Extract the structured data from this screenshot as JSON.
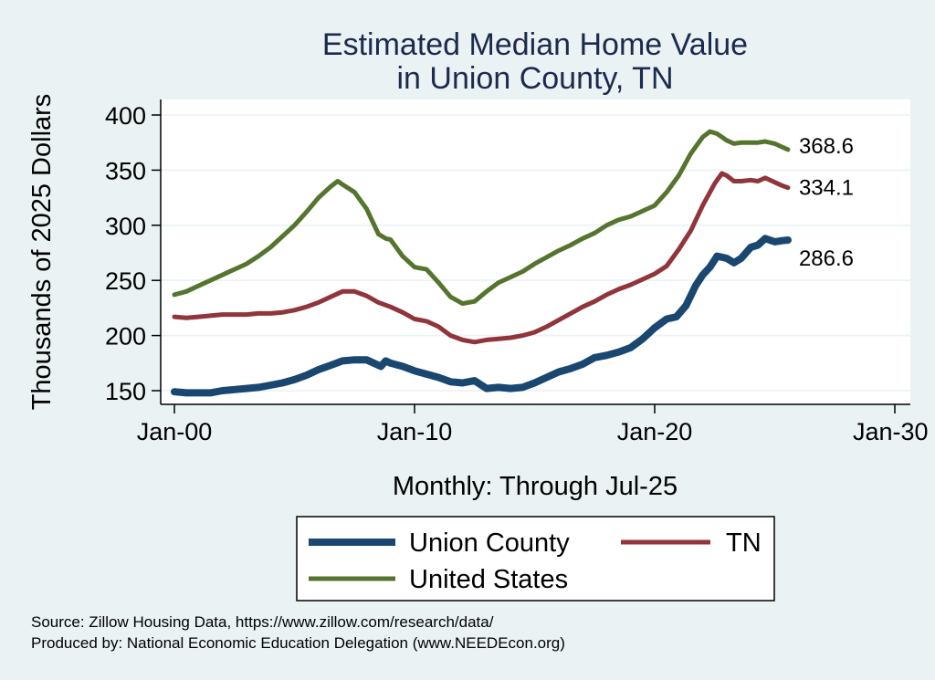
{
  "chart_data": {
    "type": "line",
    "title": [
      "Estimated Median Home Value",
      "in Union County, TN"
    ],
    "xlabel": "Monthly: Through Jul-25",
    "ylabel": "Thousands of 2025 Dollars",
    "x_ticks": [
      "Jan-00",
      "Jan-10",
      "Jan-20",
      "Jan-30"
    ],
    "x_tick_values": [
      2000,
      2010,
      2020,
      2030
    ],
    "y_ticks": [
      "150",
      "200",
      "250",
      "300",
      "350",
      "400"
    ],
    "y_tick_values": [
      150,
      200,
      250,
      300,
      350,
      400
    ],
    "xlim": [
      2000,
      2030
    ],
    "ylim": [
      150,
      400
    ],
    "grid": true,
    "legend_position": "bottom",
    "series": [
      {
        "name": "Union County",
        "color": "#1a476f",
        "end_label": "286.6",
        "points": [
          [
            2000.0,
            149
          ],
          [
            2000.5,
            148
          ],
          [
            2001.0,
            148
          ],
          [
            2001.5,
            148
          ],
          [
            2002.0,
            150
          ],
          [
            2002.5,
            151
          ],
          [
            2003.0,
            152
          ],
          [
            2003.5,
            153
          ],
          [
            2004.0,
            155
          ],
          [
            2004.5,
            157
          ],
          [
            2005.0,
            160
          ],
          [
            2005.5,
            164
          ],
          [
            2006.0,
            169
          ],
          [
            2006.5,
            173
          ],
          [
            2007.0,
            177
          ],
          [
            2007.5,
            178
          ],
          [
            2008.0,
            178
          ],
          [
            2008.3,
            175
          ],
          [
            2008.6,
            172
          ],
          [
            2008.8,
            177
          ],
          [
            2009.0,
            175
          ],
          [
            2009.5,
            172
          ],
          [
            2010.0,
            168
          ],
          [
            2010.5,
            165
          ],
          [
            2011.0,
            162
          ],
          [
            2011.5,
            158
          ],
          [
            2012.0,
            157
          ],
          [
            2012.5,
            159
          ],
          [
            2013.0,
            152
          ],
          [
            2013.5,
            153
          ],
          [
            2014.0,
            152
          ],
          [
            2014.5,
            153
          ],
          [
            2015.0,
            157
          ],
          [
            2015.5,
            162
          ],
          [
            2016.0,
            167
          ],
          [
            2016.5,
            170
          ],
          [
            2017.0,
            174
          ],
          [
            2017.5,
            180
          ],
          [
            2018.0,
            182
          ],
          [
            2018.5,
            185
          ],
          [
            2019.0,
            189
          ],
          [
            2019.5,
            197
          ],
          [
            2020.0,
            207
          ],
          [
            2020.5,
            215
          ],
          [
            2020.9,
            217
          ],
          [
            2021.3,
            227
          ],
          [
            2021.7,
            245
          ],
          [
            2022.0,
            255
          ],
          [
            2022.3,
            262
          ],
          [
            2022.6,
            272
          ],
          [
            2023.0,
            270
          ],
          [
            2023.3,
            266
          ],
          [
            2023.6,
            270
          ],
          [
            2024.0,
            280
          ],
          [
            2024.3,
            282
          ],
          [
            2024.6,
            288
          ],
          [
            2025.0,
            285
          ],
          [
            2025.3,
            286
          ],
          [
            2025.55,
            286.6
          ]
        ]
      },
      {
        "name": "TN",
        "color": "#90353b",
        "end_label": "334.1",
        "points": [
          [
            2000.0,
            217
          ],
          [
            2000.5,
            216
          ],
          [
            2001.0,
            217
          ],
          [
            2001.5,
            218
          ],
          [
            2002.0,
            219
          ],
          [
            2002.5,
            219
          ],
          [
            2003.0,
            219
          ],
          [
            2003.5,
            220
          ],
          [
            2004.0,
            220
          ],
          [
            2004.5,
            221
          ],
          [
            2005.0,
            223
          ],
          [
            2005.5,
            226
          ],
          [
            2006.0,
            230
          ],
          [
            2006.5,
            235
          ],
          [
            2007.0,
            240
          ],
          [
            2007.5,
            240
          ],
          [
            2008.0,
            236
          ],
          [
            2008.5,
            230
          ],
          [
            2009.0,
            226
          ],
          [
            2009.5,
            221
          ],
          [
            2010.0,
            215
          ],
          [
            2010.5,
            213
          ],
          [
            2011.0,
            208
          ],
          [
            2011.5,
            200
          ],
          [
            2012.0,
            196
          ],
          [
            2012.5,
            194
          ],
          [
            2013.0,
            196
          ],
          [
            2013.5,
            197
          ],
          [
            2014.0,
            198
          ],
          [
            2014.5,
            200
          ],
          [
            2015.0,
            203
          ],
          [
            2015.5,
            208
          ],
          [
            2016.0,
            214
          ],
          [
            2016.5,
            220
          ],
          [
            2017.0,
            226
          ],
          [
            2017.5,
            231
          ],
          [
            2018.0,
            237
          ],
          [
            2018.5,
            242
          ],
          [
            2019.0,
            246
          ],
          [
            2019.5,
            251
          ],
          [
            2020.0,
            256
          ],
          [
            2020.5,
            263
          ],
          [
            2021.0,
            278
          ],
          [
            2021.5,
            295
          ],
          [
            2022.0,
            318
          ],
          [
            2022.5,
            338
          ],
          [
            2022.8,
            347
          ],
          [
            2023.0,
            345
          ],
          [
            2023.3,
            340
          ],
          [
            2023.6,
            340
          ],
          [
            2024.0,
            341
          ],
          [
            2024.3,
            340
          ],
          [
            2024.6,
            343
          ],
          [
            2025.0,
            339
          ],
          [
            2025.3,
            336
          ],
          [
            2025.55,
            334.1
          ]
        ]
      },
      {
        "name": "United States",
        "color": "#55752f",
        "end_label": "368.6",
        "points": [
          [
            2000.0,
            237
          ],
          [
            2000.5,
            240
          ],
          [
            2001.0,
            245
          ],
          [
            2001.5,
            250
          ],
          [
            2002.0,
            255
          ],
          [
            2002.5,
            260
          ],
          [
            2003.0,
            265
          ],
          [
            2003.5,
            272
          ],
          [
            2004.0,
            280
          ],
          [
            2004.5,
            290
          ],
          [
            2005.0,
            300
          ],
          [
            2005.5,
            312
          ],
          [
            2006.0,
            325
          ],
          [
            2006.5,
            335
          ],
          [
            2006.8,
            340
          ],
          [
            2007.0,
            337
          ],
          [
            2007.5,
            330
          ],
          [
            2008.0,
            315
          ],
          [
            2008.5,
            292
          ],
          [
            2008.8,
            288
          ],
          [
            2009.0,
            287
          ],
          [
            2009.5,
            272
          ],
          [
            2010.0,
            262
          ],
          [
            2010.5,
            260
          ],
          [
            2011.0,
            248
          ],
          [
            2011.5,
            235
          ],
          [
            2012.0,
            229
          ],
          [
            2012.5,
            231
          ],
          [
            2013.0,
            240
          ],
          [
            2013.5,
            248
          ],
          [
            2014.0,
            253
          ],
          [
            2014.5,
            258
          ],
          [
            2015.0,
            265
          ],
          [
            2015.5,
            271
          ],
          [
            2016.0,
            277
          ],
          [
            2016.5,
            282
          ],
          [
            2017.0,
            288
          ],
          [
            2017.5,
            293
          ],
          [
            2018.0,
            300
          ],
          [
            2018.5,
            305
          ],
          [
            2019.0,
            308
          ],
          [
            2019.5,
            313
          ],
          [
            2020.0,
            318
          ],
          [
            2020.5,
            330
          ],
          [
            2021.0,
            345
          ],
          [
            2021.5,
            365
          ],
          [
            2022.0,
            380
          ],
          [
            2022.3,
            385
          ],
          [
            2022.6,
            383
          ],
          [
            2023.0,
            377
          ],
          [
            2023.3,
            374
          ],
          [
            2023.6,
            375
          ],
          [
            2024.0,
            375
          ],
          [
            2024.3,
            375
          ],
          [
            2024.6,
            376
          ],
          [
            2025.0,
            374
          ],
          [
            2025.3,
            371
          ],
          [
            2025.55,
            368.6
          ]
        ]
      }
    ]
  },
  "source": {
    "line1": "Source: Zillow Housing Data, https://www.zillow.com/research/data/",
    "line2": "Produced by: National Economic Education Delegation (www.NEEDEcon.org)"
  }
}
